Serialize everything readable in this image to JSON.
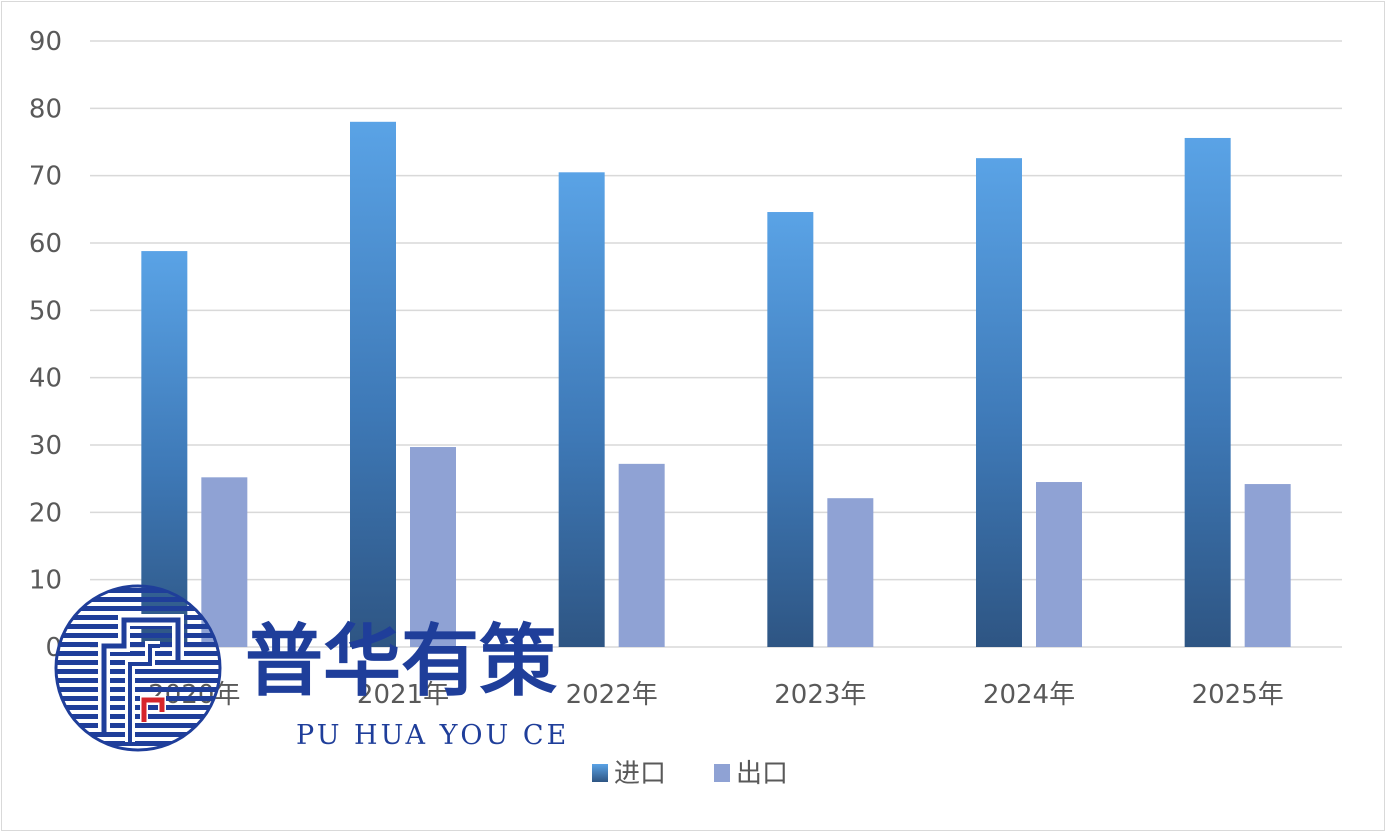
{
  "chart_data": {
    "type": "bar",
    "categories": [
      "2020年",
      "2021年",
      "2022年",
      "2023年",
      "2024年",
      "2025年"
    ],
    "series": [
      {
        "name": "进口",
        "values": [
          58.8,
          78.0,
          70.5,
          64.6,
          72.6,
          75.6
        ],
        "color": "#3d7fc0"
      },
      {
        "name": "出口",
        "values": [
          25.2,
          29.7,
          27.2,
          22.1,
          24.5,
          24.2
        ],
        "color": "#8fa2d4"
      }
    ],
    "ylim": [
      0,
      90
    ],
    "yticks": [
      "0",
      "10",
      "20",
      "30",
      "40",
      "50",
      "60",
      "70",
      "80",
      "90"
    ],
    "grid": true,
    "legend": "bottom",
    "title": "",
    "xlabel": "",
    "ylabel": ""
  },
  "watermark": {
    "text_cn": "普华有策",
    "text_en": "PU HUA YOU CE",
    "color": "#1f3e9a"
  }
}
